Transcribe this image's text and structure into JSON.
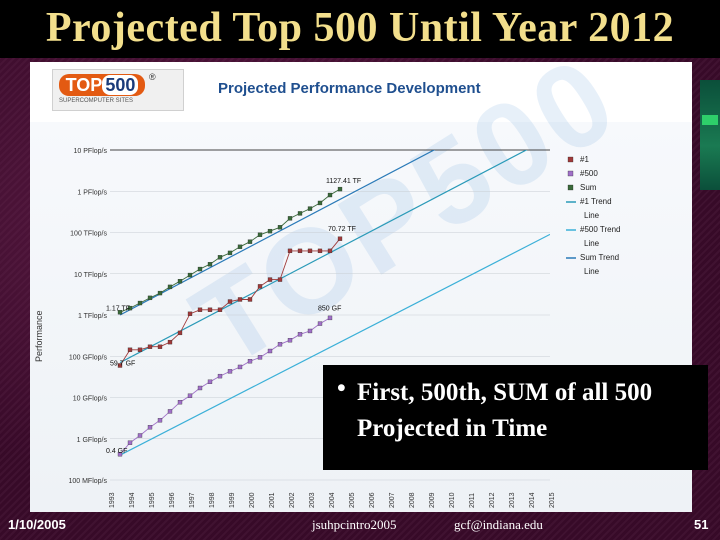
{
  "slide": {
    "title": "Projected Top 500 Until Year 2012",
    "callout_text": "First, 500th, SUM of all 500 Projected in Time",
    "footer_date": "1/10/2005",
    "footer_file": "jsuhpcintro2005",
    "footer_email": "gcf@indiana.edu",
    "footer_page": "51"
  },
  "logo": {
    "top": "TOP",
    "num": "500",
    "sub": "SUPERCOMPUTER SITES",
    "reg": "®"
  },
  "colors": {
    "title": "#f3df8c",
    "n1": "#a03a3a",
    "n500": "#a070c8",
    "sum": "#3a6a3a",
    "trend_n1": "#2a9ab8",
    "trend_n500": "#3bb0d8",
    "trend_sum": "#2a7ab8",
    "chart_title": "#1f4f8f"
  },
  "chart_data": {
    "type": "line",
    "title": "Projected Performance Development",
    "ylabel": "Performance",
    "xlabel": "",
    "y_scale": "log",
    "ylim": [
      0.1,
      10000000
    ],
    "y_ticks": [
      "100 MFlop/s",
      "1 GFlop/s",
      "10 GFlop/s",
      "100 GFlop/s",
      "1 TFlop/s",
      "10 TFlop/s",
      "100 TFlop/s",
      "1 PFlop/s",
      "10 PFlop/s"
    ],
    "x": [
      1993,
      1994,
      1995,
      1996,
      1997,
      1998,
      1999,
      2000,
      2001,
      2002,
      2003,
      2004,
      2005,
      2006,
      2007,
      2008,
      2009,
      2010,
      2011,
      2012,
      2013,
      2014,
      2015
    ],
    "x_tick_labels": [
      "1993",
      "1994",
      "1995",
      "1996",
      "1997",
      "1998",
      "1999",
      "2000",
      "2001",
      "2002",
      "2003",
      "2004",
      "2005",
      "2006",
      "2007",
      "2008",
      "2009",
      "2010",
      "2011",
      "2012",
      "2013",
      "2014",
      "2015"
    ],
    "legend_position": "right",
    "grid": "horizontal",
    "series": [
      {
        "name": "#1",
        "key": "n1",
        "points": [
          [
            1993.5,
            59.7
          ],
          [
            1994,
            143
          ],
          [
            1994.5,
            143
          ],
          [
            1995,
            170
          ],
          [
            1995.5,
            170
          ],
          [
            1996,
            220
          ],
          [
            1996.5,
            368
          ],
          [
            1997,
            1068
          ],
          [
            1997.5,
            1338
          ],
          [
            1998,
            1338
          ],
          [
            1998.5,
            1338
          ],
          [
            1999,
            2121
          ],
          [
            1999.5,
            2379
          ],
          [
            2000,
            2379
          ],
          [
            2000.5,
            4938
          ],
          [
            2001,
            7226
          ],
          [
            2001.5,
            7226
          ],
          [
            2002,
            35860
          ],
          [
            2002.5,
            35860
          ],
          [
            2003,
            35860
          ],
          [
            2003.5,
            35860
          ],
          [
            2004,
            35860
          ],
          [
            2004.5,
            70720
          ]
        ]
      },
      {
        "name": "#500",
        "key": "n500",
        "points": [
          [
            1993.5,
            0.42
          ],
          [
            1994,
            0.8
          ],
          [
            1994.5,
            1.2
          ],
          [
            1995,
            1.9
          ],
          [
            1995.5,
            2.8
          ],
          [
            1996,
            4.6
          ],
          [
            1996.5,
            7.7
          ],
          [
            1997,
            11
          ],
          [
            1997.5,
            17
          ],
          [
            1998,
            24
          ],
          [
            1998.5,
            33
          ],
          [
            1999,
            43
          ],
          [
            1999.5,
            55
          ],
          [
            2000,
            76
          ],
          [
            2000.5,
            94
          ],
          [
            2001,
            134
          ],
          [
            2001.5,
            195
          ],
          [
            2002,
            245
          ],
          [
            2002.5,
            340
          ],
          [
            2003,
            410
          ],
          [
            2003.5,
            620
          ],
          [
            2004,
            850
          ]
        ]
      },
      {
        "name": "Sum",
        "key": "sum",
        "points": [
          [
            1993.5,
            1170
          ],
          [
            1994,
            1470
          ],
          [
            1994.5,
            1950
          ],
          [
            1995,
            2600
          ],
          [
            1995.5,
            3400
          ],
          [
            1996,
            4800
          ],
          [
            1996.5,
            6600
          ],
          [
            1997,
            9300
          ],
          [
            1997.5,
            13000
          ],
          [
            1998,
            17000
          ],
          [
            1998.5,
            25000
          ],
          [
            1999,
            32000
          ],
          [
            1999.5,
            45000
          ],
          [
            2000,
            60000
          ],
          [
            2000.5,
            88000
          ],
          [
            2001,
            108000
          ],
          [
            2001.5,
            134000
          ],
          [
            2002,
            220000
          ],
          [
            2002.5,
            290000
          ],
          [
            2003,
            380000
          ],
          [
            2003.5,
            520000
          ],
          [
            2004,
            810000
          ],
          [
            2004.5,
            1127410
          ]
        ]
      },
      {
        "name": "#1 Trend Line",
        "key": "trend_n1",
        "trend": [
          [
            1993.5,
            70
          ],
          [
            2015,
            20000000
          ]
        ]
      },
      {
        "name": "#500 Trend Line",
        "key": "trend_n500",
        "trend": [
          [
            1993.5,
            0.4
          ],
          [
            2015,
            90000
          ]
        ]
      },
      {
        "name": "Sum Trend Line",
        "key": "trend_sum",
        "trend": [
          [
            1993.5,
            1000
          ],
          [
            2015,
            300000000
          ]
        ]
      }
    ],
    "annotations": [
      {
        "text": "1127.41 TF",
        "x": 2004.2,
        "y": 1600000
      },
      {
        "text": "70.72 TF",
        "x": 2004.3,
        "y": 110000
      },
      {
        "text": "850 GF",
        "x": 2003.8,
        "y": 1300
      },
      {
        "text": "1.17 TF",
        "x": 1993.2,
        "y": 1300
      },
      {
        "text": "59.7 GF",
        "x": 1993.4,
        "y": 60
      },
      {
        "text": "0.4 GF",
        "x": 1993.2,
        "y": 0.45
      }
    ]
  }
}
